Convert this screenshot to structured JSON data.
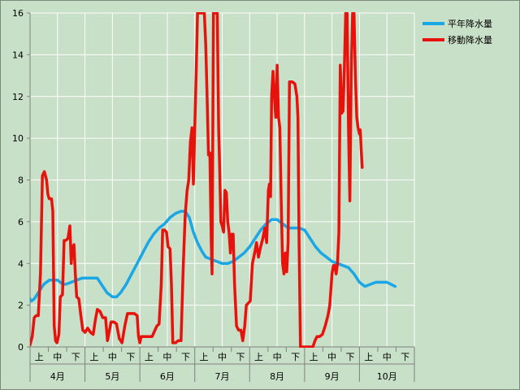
{
  "chart_data": {
    "type": "line",
    "title": "",
    "xlabel": "",
    "ylabel": "",
    "ylim": [
      0,
      16
    ],
    "yticks": [
      0,
      2,
      4,
      6,
      8,
      10,
      12,
      14,
      16
    ],
    "grid": true,
    "legend_position": "top-right",
    "months": [
      "4月",
      "5月",
      "6月",
      "7月",
      "8月",
      "9月",
      "10月"
    ],
    "periods": [
      "上",
      "中",
      "下"
    ],
    "series": [
      {
        "name": "平年降水量",
        "color": "#1aa7e6",
        "values": [
          [
            0,
            2.3
          ],
          [
            0.05,
            2.2
          ],
          [
            0.15,
            2.3
          ],
          [
            0.3,
            2.6
          ],
          [
            0.5,
            3.0
          ],
          [
            0.7,
            3.2
          ],
          [
            0.9,
            3.2
          ],
          [
            1.0,
            3.2
          ],
          [
            1.1,
            3.1
          ],
          [
            1.2,
            3.0
          ],
          [
            1.3,
            3.0
          ],
          [
            1.5,
            3.1
          ],
          [
            1.7,
            3.2
          ],
          [
            1.9,
            3.3
          ],
          [
            2.1,
            3.3
          ],
          [
            2.3,
            3.3
          ],
          [
            2.45,
            3.3
          ],
          [
            2.6,
            3.0
          ],
          [
            2.8,
            2.6
          ],
          [
            3.0,
            2.4
          ],
          [
            3.15,
            2.4
          ],
          [
            3.3,
            2.6
          ],
          [
            3.5,
            3.0
          ],
          [
            3.7,
            3.5
          ],
          [
            3.9,
            4.0
          ],
          [
            4.1,
            4.5
          ],
          [
            4.3,
            5.0
          ],
          [
            4.5,
            5.4
          ],
          [
            4.7,
            5.7
          ],
          [
            4.9,
            5.9
          ],
          [
            5.1,
            6.2
          ],
          [
            5.3,
            6.4
          ],
          [
            5.5,
            6.5
          ],
          [
            5.65,
            6.5
          ],
          [
            5.8,
            6.2
          ],
          [
            5.95,
            5.5
          ],
          [
            6.1,
            5.0
          ],
          [
            6.25,
            4.6
          ],
          [
            6.4,
            4.3
          ],
          [
            6.6,
            4.2
          ],
          [
            6.8,
            4.1
          ],
          [
            7.0,
            4.0
          ],
          [
            7.2,
            4.0
          ],
          [
            7.4,
            4.1
          ],
          [
            7.6,
            4.3
          ],
          [
            7.8,
            4.5
          ],
          [
            8.0,
            4.8
          ],
          [
            8.2,
            5.2
          ],
          [
            8.4,
            5.6
          ],
          [
            8.6,
            5.9
          ],
          [
            8.8,
            6.1
          ],
          [
            9.0,
            6.1
          ],
          [
            9.2,
            5.9
          ],
          [
            9.4,
            5.7
          ],
          [
            9.6,
            5.7
          ],
          [
            9.8,
            5.7
          ],
          [
            10.0,
            5.6
          ],
          [
            10.2,
            5.2
          ],
          [
            10.4,
            4.8
          ],
          [
            10.6,
            4.5
          ],
          [
            10.8,
            4.3
          ],
          [
            11.0,
            4.1
          ],
          [
            11.2,
            4.0
          ],
          [
            11.4,
            3.9
          ],
          [
            11.6,
            3.8
          ],
          [
            11.8,
            3.5
          ],
          [
            12.0,
            3.1
          ],
          [
            12.2,
            2.9
          ],
          [
            12.4,
            3.0
          ],
          [
            12.6,
            3.1
          ],
          [
            12.8,
            3.1
          ],
          [
            13.0,
            3.1
          ],
          [
            13.15,
            3.0
          ],
          [
            13.3,
            2.9
          ]
        ]
      },
      {
        "name": "移動降水量",
        "color": "#e8120c",
        "values": [
          [
            0,
            0.1
          ],
          [
            0.08,
            0.5
          ],
          [
            0.15,
            1.4
          ],
          [
            0.22,
            1.5
          ],
          [
            0.3,
            1.5
          ],
          [
            0.38,
            3.5
          ],
          [
            0.45,
            8.2
          ],
          [
            0.52,
            8.4
          ],
          [
            0.6,
            8.0
          ],
          [
            0.65,
            7.3
          ],
          [
            0.7,
            7.1
          ],
          [
            0.78,
            7.1
          ],
          [
            0.83,
            6.5
          ],
          [
            0.88,
            1.0
          ],
          [
            0.93,
            0.3
          ],
          [
            0.98,
            0.2
          ],
          [
            1.05,
            0.6
          ],
          [
            1.1,
            2.4
          ],
          [
            1.18,
            2.5
          ],
          [
            1.24,
            5.1
          ],
          [
            1.3,
            5.1
          ],
          [
            1.38,
            5.2
          ],
          [
            1.45,
            5.8
          ],
          [
            1.5,
            4.0
          ],
          [
            1.55,
            4.8
          ],
          [
            1.6,
            4.9
          ],
          [
            1.65,
            3.5
          ],
          [
            1.7,
            2.4
          ],
          [
            1.78,
            2.3
          ],
          [
            1.85,
            1.5
          ],
          [
            1.92,
            0.8
          ],
          [
            2.0,
            0.7
          ],
          [
            2.1,
            0.9
          ],
          [
            2.2,
            0.7
          ],
          [
            2.3,
            0.6
          ],
          [
            2.38,
            1.3
          ],
          [
            2.45,
            1.8
          ],
          [
            2.55,
            1.7
          ],
          [
            2.65,
            1.4
          ],
          [
            2.75,
            1.4
          ],
          [
            2.82,
            0.3
          ],
          [
            2.88,
            0.7
          ],
          [
            2.95,
            1.2
          ],
          [
            3.05,
            1.2
          ],
          [
            3.15,
            1.1
          ],
          [
            3.25,
            0.4
          ],
          [
            3.35,
            0.2
          ],
          [
            3.45,
            1.0
          ],
          [
            3.55,
            1.6
          ],
          [
            3.65,
            1.6
          ],
          [
            3.8,
            1.6
          ],
          [
            3.9,
            1.5
          ],
          [
            3.95,
            0.5
          ],
          [
            4.0,
            0.2
          ],
          [
            4.05,
            0.5
          ],
          [
            4.15,
            0.5
          ],
          [
            4.3,
            0.5
          ],
          [
            4.45,
            0.5
          ],
          [
            4.55,
            0.8
          ],
          [
            4.62,
            1.0
          ],
          [
            4.7,
            1.1
          ],
          [
            4.78,
            3.0
          ],
          [
            4.83,
            5.6
          ],
          [
            4.9,
            5.6
          ],
          [
            4.97,
            5.5
          ],
          [
            5.03,
            4.8
          ],
          [
            5.1,
            4.7
          ],
          [
            5.15,
            3.0
          ],
          [
            5.2,
            0.2
          ],
          [
            5.3,
            0.2
          ],
          [
            5.4,
            0.3
          ],
          [
            5.5,
            0.3
          ],
          [
            5.58,
            3.8
          ],
          [
            5.65,
            6.3
          ],
          [
            5.72,
            7.5
          ],
          [
            5.78,
            8.0
          ],
          [
            5.84,
            9.8
          ],
          [
            5.9,
            10.5
          ],
          [
            5.95,
            7.8
          ],
          [
            6.0,
            10.5
          ],
          [
            6.05,
            13.0
          ],
          [
            6.1,
            16.0
          ],
          [
            6.35,
            16.0
          ],
          [
            6.4,
            14.5
          ],
          [
            6.45,
            12.0
          ],
          [
            6.5,
            9.2
          ],
          [
            6.55,
            9.3
          ],
          [
            6.6,
            5.0
          ],
          [
            6.63,
            3.5
          ],
          [
            6.68,
            16.0
          ],
          [
            6.82,
            16.0
          ],
          [
            6.87,
            10.5
          ],
          [
            6.9,
            9.0
          ],
          [
            6.95,
            6.0
          ],
          [
            7.0,
            5.8
          ],
          [
            7.05,
            5.5
          ],
          [
            7.1,
            7.5
          ],
          [
            7.15,
            7.4
          ],
          [
            7.2,
            6.0
          ],
          [
            7.25,
            5.5
          ],
          [
            7.3,
            4.5
          ],
          [
            7.35,
            5.4
          ],
          [
            7.4,
            5.4
          ],
          [
            7.45,
            3.0
          ],
          [
            7.52,
            1.0
          ],
          [
            7.6,
            0.8
          ],
          [
            7.68,
            0.8
          ],
          [
            7.75,
            0.3
          ],
          [
            7.82,
            1.0
          ],
          [
            7.88,
            2.0
          ],
          [
            7.95,
            2.1
          ],
          [
            8.02,
            2.2
          ],
          [
            8.1,
            4.0
          ],
          [
            8.18,
            4.5
          ],
          [
            8.25,
            5.0
          ],
          [
            8.32,
            4.3
          ],
          [
            8.4,
            4.8
          ],
          [
            8.48,
            5.2
          ],
          [
            8.55,
            5.7
          ],
          [
            8.62,
            5.0
          ],
          [
            8.68,
            7.5
          ],
          [
            8.72,
            7.8
          ],
          [
            8.76,
            7.2
          ],
          [
            8.8,
            12.0
          ],
          [
            8.85,
            13.2
          ],
          [
            8.9,
            12.0
          ],
          [
            8.95,
            11.0
          ],
          [
            9.0,
            13.5
          ],
          [
            9.05,
            11.0
          ],
          [
            9.1,
            10.5
          ],
          [
            9.15,
            7.0
          ],
          [
            9.2,
            4.0
          ],
          [
            9.25,
            3.5
          ],
          [
            9.3,
            4.5
          ],
          [
            9.35,
            3.6
          ],
          [
            9.4,
            5.0
          ],
          [
            9.45,
            12.7
          ],
          [
            9.55,
            12.7
          ],
          [
            9.65,
            12.6
          ],
          [
            9.72,
            12.0
          ],
          [
            9.76,
            11.0
          ],
          [
            9.8,
            5.0
          ],
          [
            9.85,
            0.0
          ],
          [
            10.0,
            0.0
          ],
          [
            10.15,
            0.0
          ],
          [
            10.3,
            0.0
          ],
          [
            10.38,
            0.3
          ],
          [
            10.45,
            0.5
          ],
          [
            10.55,
            0.5
          ],
          [
            10.65,
            0.6
          ],
          [
            10.75,
            1.0
          ],
          [
            10.85,
            1.5
          ],
          [
            10.92,
            2.0
          ],
          [
            11.0,
            3.5
          ],
          [
            11.05,
            3.9
          ],
          [
            11.1,
            3.9
          ],
          [
            11.15,
            3.5
          ],
          [
            11.2,
            4.0
          ],
          [
            11.25,
            5.5
          ],
          [
            11.3,
            13.5
          ],
          [
            11.35,
            11.2
          ],
          [
            11.4,
            11.3
          ],
          [
            11.45,
            13.3
          ],
          [
            11.5,
            16.0
          ],
          [
            11.55,
            16.0
          ],
          [
            11.6,
            10.5
          ],
          [
            11.65,
            7.0
          ],
          [
            11.7,
            13.3
          ],
          [
            11.75,
            16.0
          ],
          [
            11.8,
            16.0
          ],
          [
            11.85,
            13.0
          ],
          [
            11.9,
            11.0
          ],
          [
            11.95,
            10.5
          ],
          [
            12.0,
            10.2
          ],
          [
            12.03,
            10.4
          ],
          [
            12.06,
            9.5
          ],
          [
            12.1,
            8.6
          ]
        ]
      }
    ]
  }
}
